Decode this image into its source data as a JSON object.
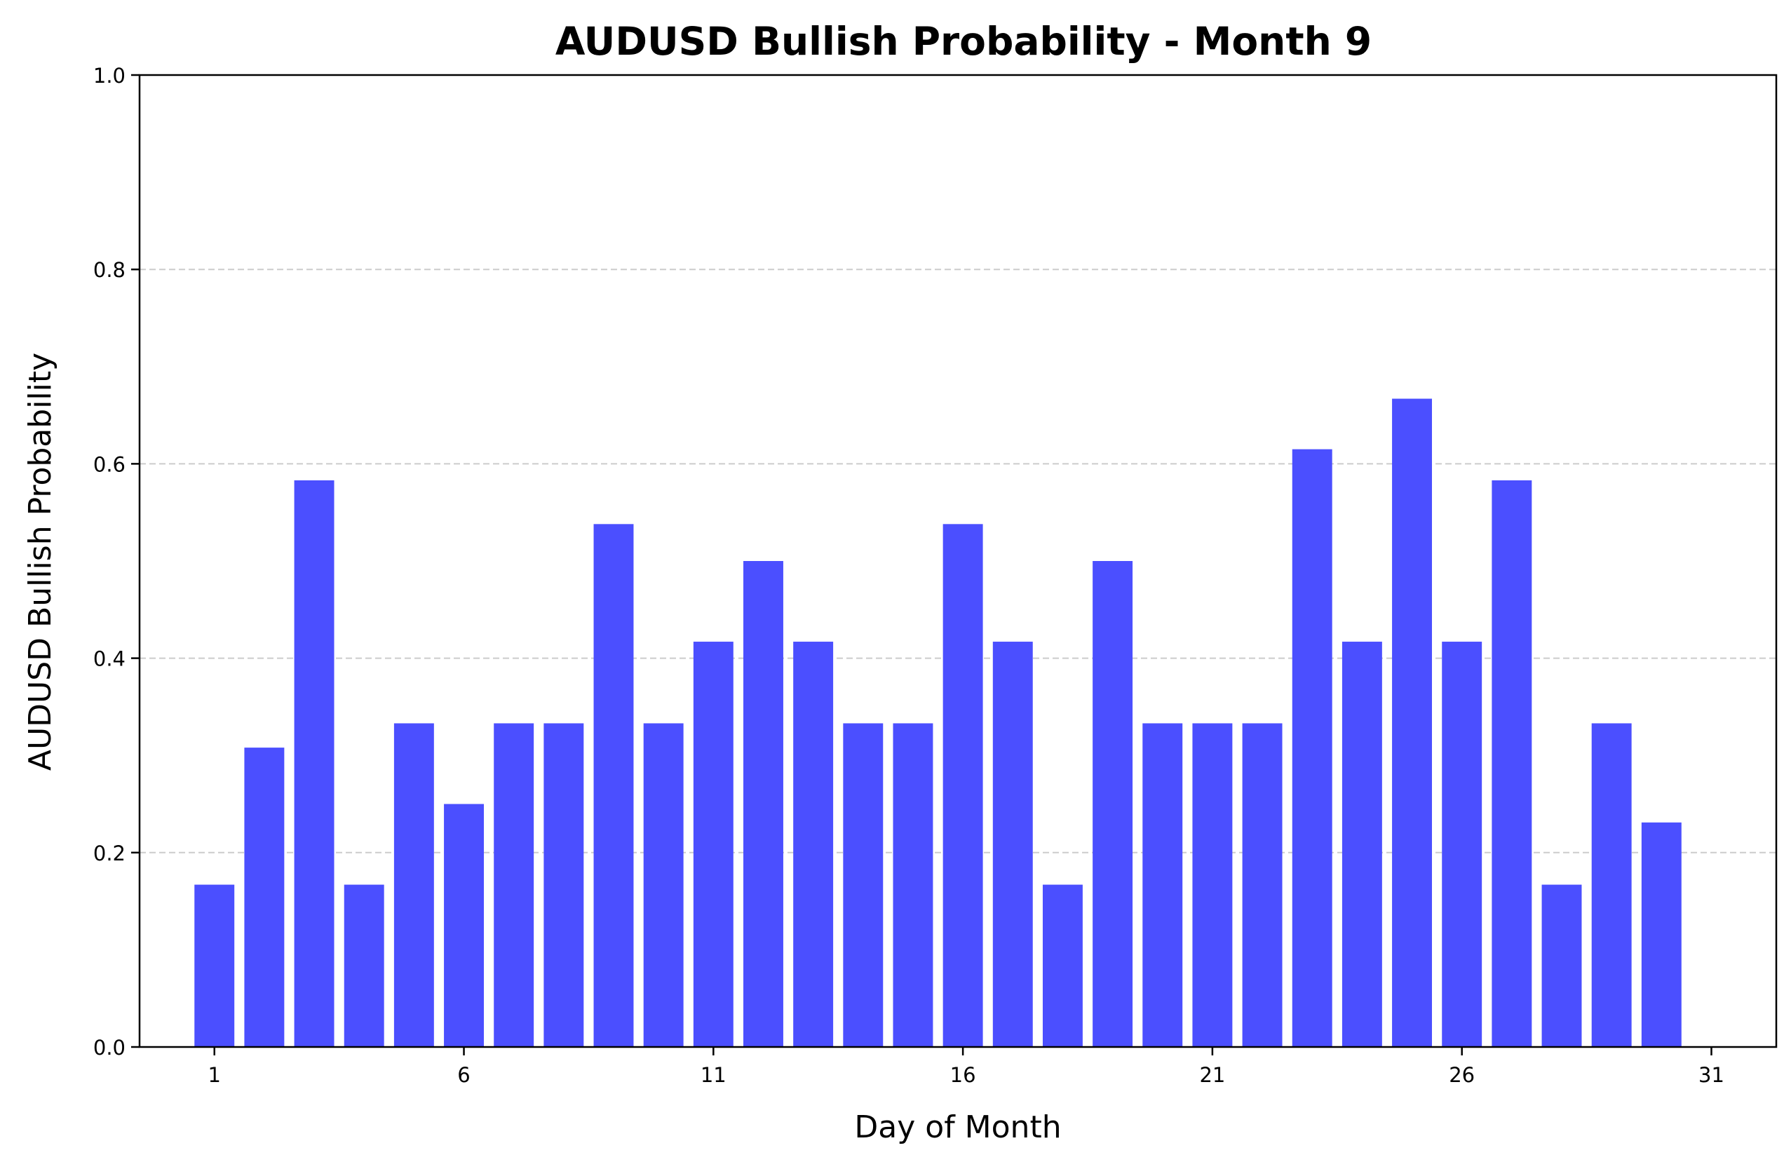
{
  "chart_data": {
    "type": "bar",
    "title": "AUDUSD Bullish Probability - Month 9",
    "xlabel": "Day of Month",
    "ylabel": "AUDUSD Bullish Probability",
    "x": [
      1,
      2,
      3,
      4,
      5,
      6,
      7,
      8,
      9,
      10,
      11,
      12,
      13,
      14,
      15,
      16,
      17,
      18,
      19,
      20,
      21,
      22,
      23,
      24,
      25,
      26,
      27,
      28,
      29,
      30
    ],
    "values": [
      0.167,
      0.308,
      0.583,
      0.167,
      0.333,
      0.25,
      0.333,
      0.333,
      0.538,
      0.333,
      0.417,
      0.5,
      0.417,
      0.333,
      0.333,
      0.538,
      0.417,
      0.167,
      0.5,
      0.333,
      0.333,
      0.333,
      0.615,
      0.417,
      0.667,
      0.417,
      0.583,
      0.167,
      0.333,
      0.231
    ],
    "xlim": [
      -0.5,
      32.3
    ],
    "ylim": [
      0,
      1.0
    ],
    "xticks": [
      1,
      6,
      11,
      16,
      21,
      26,
      31
    ],
    "yticks": [
      0.0,
      0.2,
      0.4,
      0.6,
      0.8,
      1.0
    ],
    "ytick_labels": [
      "0.0",
      "0.2",
      "0.4",
      "0.6",
      "0.8",
      "1.0"
    ],
    "grid": "y-dashed",
    "bar_color": "#4b4fff",
    "grid_color": "#cccccc"
  }
}
